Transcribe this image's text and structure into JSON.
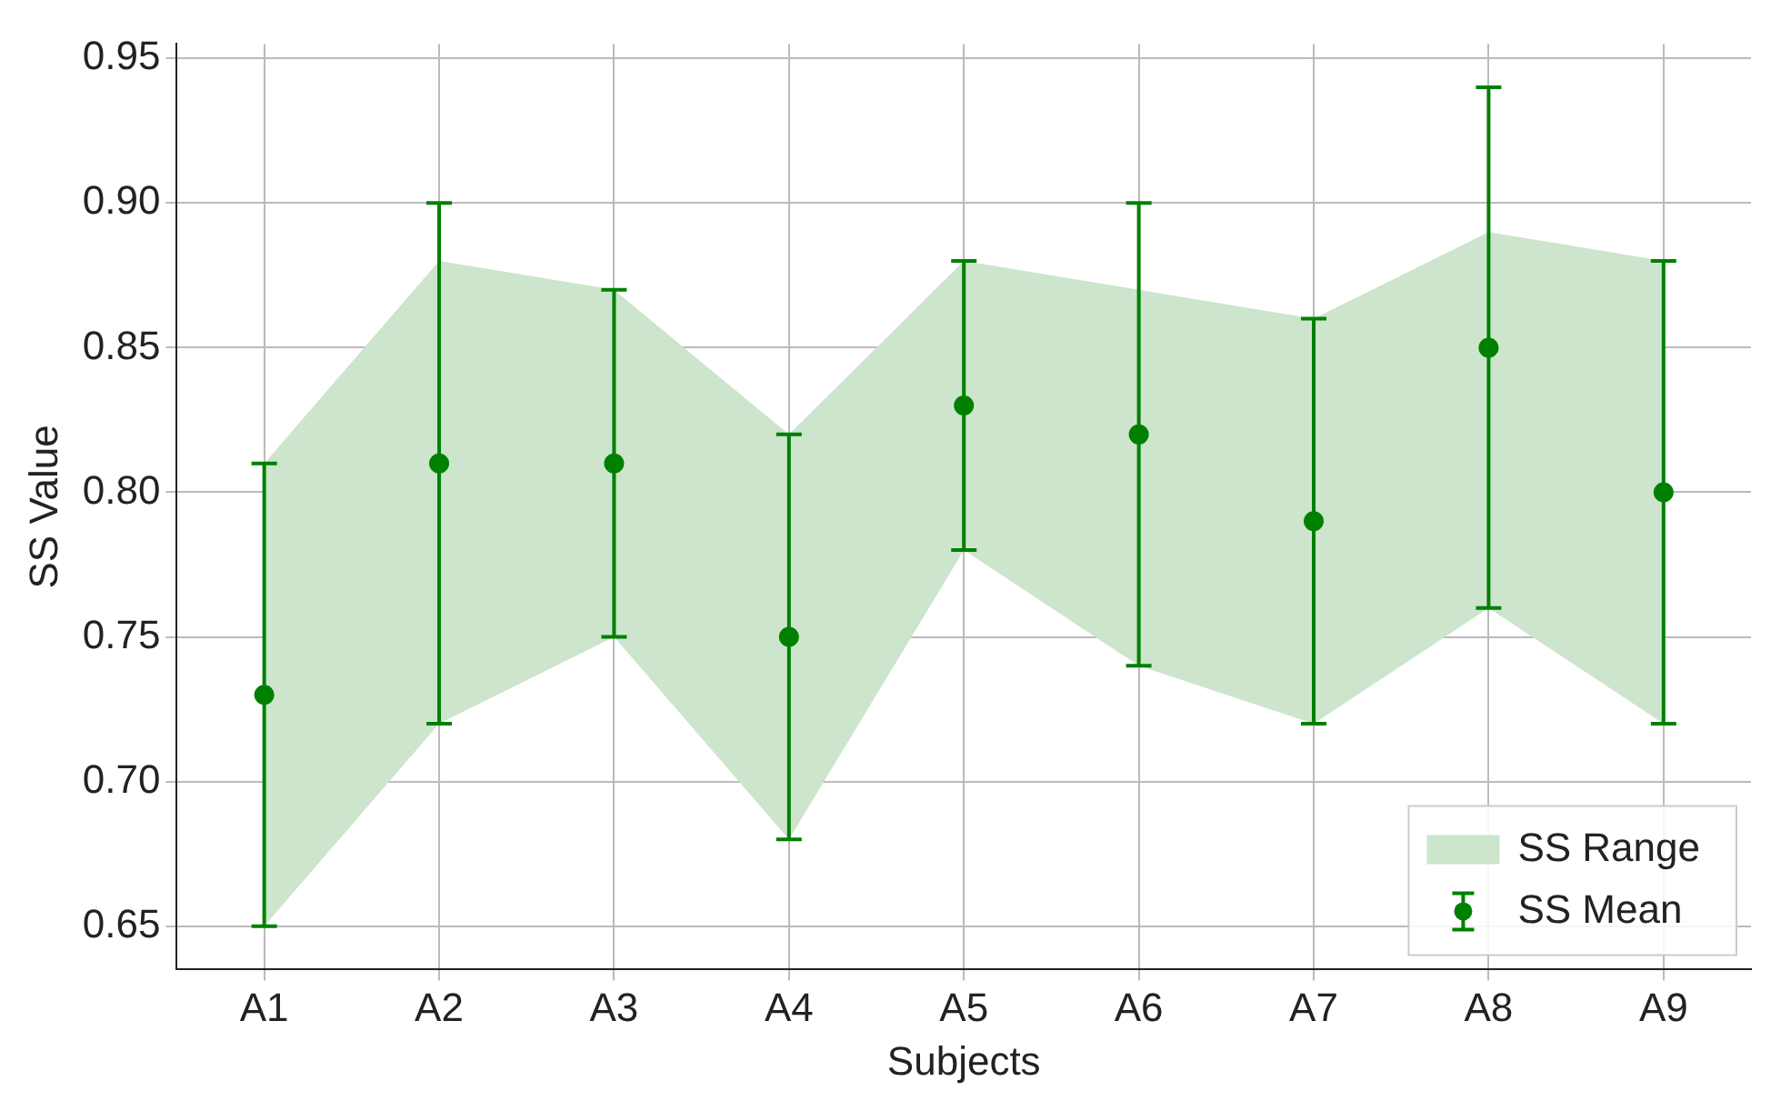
{
  "chart_data": {
    "type": "scatter",
    "xlabel": "Subjects",
    "ylabel": "SS Value",
    "categories": [
      "A1",
      "A2",
      "A3",
      "A4",
      "A5",
      "A6",
      "A7",
      "A8",
      "A9"
    ],
    "series": [
      {
        "name": "SS Range",
        "type": "area",
        "color": "#cce5cc",
        "values": [
          null,
          null,
          null,
          null,
          null,
          null,
          null,
          null,
          null
        ],
        "upper": [
          0.81,
          0.88,
          0.87,
          0.82,
          0.88,
          0.87,
          0.86,
          0.89,
          0.88
        ],
        "lower": [
          0.65,
          0.72,
          0.75,
          0.68,
          0.78,
          0.74,
          0.72,
          0.76,
          0.72
        ]
      },
      {
        "name": "SS Mean",
        "marker": "circle",
        "color": "#008000",
        "values": [
          0.73,
          0.81,
          0.81,
          0.75,
          0.83,
          0.82,
          0.79,
          0.85,
          0.8
        ],
        "errors": [
          [
            0.65,
            0.81
          ],
          [
            0.72,
            0.9
          ],
          [
            0.75,
            0.87
          ],
          [
            0.68,
            0.82
          ],
          [
            0.78,
            0.88
          ],
          [
            0.74,
            0.9
          ],
          [
            0.72,
            0.86
          ],
          [
            0.76,
            0.94
          ],
          [
            0.72,
            0.88
          ]
        ]
      }
    ],
    "ylim": [
      0.635,
      0.955
    ],
    "yticks": [
      {
        "value": 0.65,
        "label": "0.65"
      },
      {
        "value": 0.7,
        "label": "0.70"
      },
      {
        "value": 0.75,
        "label": "0.75"
      },
      {
        "value": 0.8,
        "label": "0.80"
      },
      {
        "value": 0.85,
        "label": "0.85"
      },
      {
        "value": 0.9,
        "label": "0.90"
      },
      {
        "value": 0.95,
        "label": "0.95"
      }
    ],
    "grid": true,
    "legend": "bottom right"
  }
}
